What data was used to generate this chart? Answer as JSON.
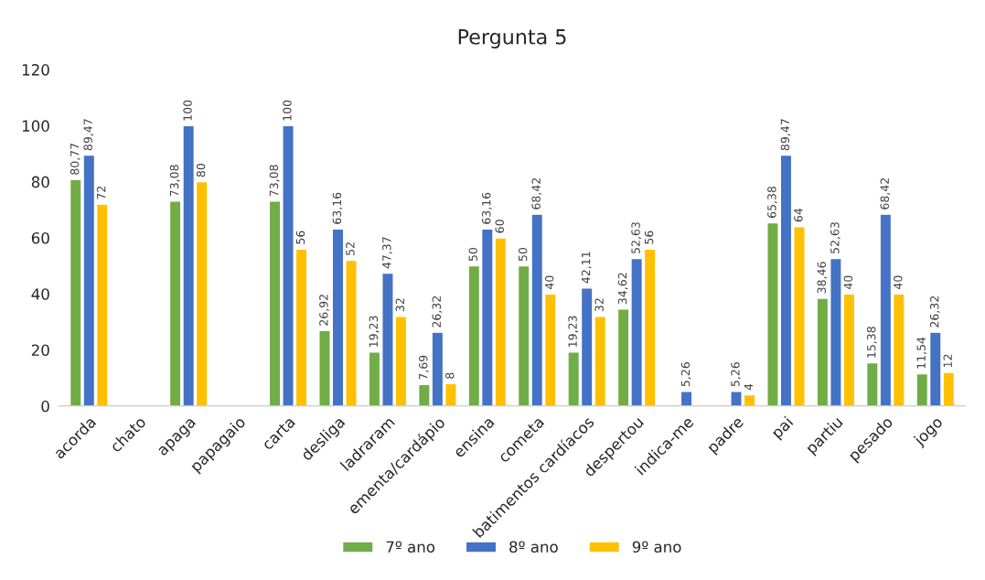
{
  "chart_data": {
    "type": "bar",
    "title": "Pergunta 5",
    "categories": [
      "acorda",
      "chato",
      "apaga",
      "papagaio",
      "carta",
      "desliga",
      "ladraram",
      "ementa/cardápio",
      "ensina",
      "cometa",
      "batimentos cardíacos",
      "despertou",
      "indica-me",
      "padre",
      "pai",
      "partiu",
      "pesado",
      "jogo"
    ],
    "series": [
      {
        "name": "7º ano",
        "color": "#70ad47",
        "values": [
          80.77,
          null,
          73.08,
          null,
          73.08,
          26.92,
          19.23,
          7.69,
          50,
          50,
          19.23,
          34.62,
          null,
          null,
          65.38,
          38.46,
          15.38,
          11.54
        ],
        "value_labels": [
          "80,77",
          null,
          "73,08",
          null,
          "73,08",
          "26,92",
          "19,23",
          "7,69",
          "50",
          "50",
          "19,23",
          "34,62",
          null,
          null,
          "65,38",
          "38,46",
          "15,38",
          "11,54"
        ]
      },
      {
        "name": "8º ano",
        "color": "#4472c4",
        "values": [
          89.47,
          null,
          100,
          null,
          100,
          63.16,
          47.37,
          26.32,
          63.16,
          68.42,
          42.11,
          52.63,
          5.26,
          5.26,
          89.47,
          52.63,
          68.42,
          26.32
        ],
        "value_labels": [
          "89,47",
          null,
          "100",
          null,
          "100",
          "63,16",
          "47,37",
          "26,32",
          "63,16",
          "68,42",
          "42,11",
          "52,63",
          "5,26",
          "5,26",
          "89,47",
          "52,63",
          "68,42",
          "26,32"
        ]
      },
      {
        "name": "9º ano",
        "color": "#ffc000",
        "values": [
          72,
          null,
          80,
          null,
          56,
          52,
          32,
          8,
          60,
          40,
          32,
          56,
          null,
          4,
          64,
          40,
          40,
          12
        ],
        "value_labels": [
          "72",
          null,
          "80",
          null,
          "56",
          "52",
          "32",
          "8",
          "60",
          "40",
          "32",
          "56",
          null,
          "4",
          "64",
          "40",
          "40",
          "12"
        ]
      }
    ],
    "ylim": [
      0,
      120
    ],
    "yticks": [
      0,
      20,
      40,
      60,
      80,
      100,
      120
    ],
    "grid": false,
    "legend": "bottom"
  }
}
